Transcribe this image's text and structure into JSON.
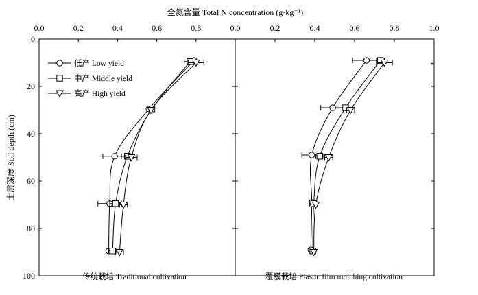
{
  "chart_data": {
    "type": "line",
    "title": "全氮含量 Total N concentration (g·kg⁻¹)",
    "ylabel": "土层深度 Soil depth (cm)",
    "xlim": [
      0,
      1.0
    ],
    "ylim": [
      0,
      100
    ],
    "y_inverted": true,
    "x_axis_position": "top",
    "grid": false,
    "legend_position": "top-left",
    "x_ticks": [
      "0.0",
      "0.2",
      "0.4",
      "0.6",
      "0.8",
      "0.0",
      "0.2",
      "0.4",
      "0.6",
      "0.8",
      "1.0"
    ],
    "y_ticks": [
      "0",
      "20",
      "40",
      "60",
      "80",
      "100"
    ],
    "legend": [
      {
        "name": "低产 Low yield",
        "marker": "circle"
      },
      {
        "name": "中产 Middle yield",
        "marker": "square"
      },
      {
        "name": "高产 High yield",
        "marker": "triangle-down"
      }
    ],
    "panels": [
      {
        "label": "传统栽培 Traditional cultivation",
        "annotation": "",
        "series": [
          {
            "name": "低产 Low yield",
            "marker": "circle",
            "points": [
              {
                "x": 0.79,
                "y": 9,
                "err": 0.0
              },
              {
                "x": 0.56,
                "y": 29.5,
                "err": 0.0
              },
              {
                "x": 0.385,
                "y": 49.5,
                "err": 0.06
              },
              {
                "x": 0.36,
                "y": 69.5,
                "err": 0.06
              },
              {
                "x": 0.355,
                "y": 89.5,
                "err": 0.0
              }
            ]
          },
          {
            "name": "中产 Middle yield",
            "marker": "square",
            "points": [
              {
                "x": 0.77,
                "y": 9.5,
                "err": 0.03
              },
              {
                "x": 0.575,
                "y": 29.5,
                "err": 0.0
              },
              {
                "x": 0.45,
                "y": 49.5,
                "err": 0.03
              },
              {
                "x": 0.39,
                "y": 69.5,
                "err": 0.03
              },
              {
                "x": 0.375,
                "y": 89.5,
                "err": 0.02
              }
            ]
          },
          {
            "name": "高产 High yield",
            "marker": "triangle-down",
            "points": [
              {
                "x": 0.8,
                "y": 10,
                "err": 0.04
              },
              {
                "x": 0.57,
                "y": 30,
                "err": 0.0
              },
              {
                "x": 0.47,
                "y": 50,
                "err": 0.03
              },
              {
                "x": 0.43,
                "y": 70,
                "err": 0.02
              },
              {
                "x": 0.41,
                "y": 90,
                "err": 0.02
              }
            ]
          }
        ]
      },
      {
        "label": "覆膜栽培 Plastic film mulching cultivation",
        "annotation": "*",
        "series": [
          {
            "name": "低产 Low yield",
            "marker": "circle",
            "points": [
              {
                "x": 0.66,
                "y": 9,
                "err": 0.07
              },
              {
                "x": 0.49,
                "y": 29,
                "err": 0.06
              },
              {
                "x": 0.385,
                "y": 49,
                "err": 0.05
              },
              {
                "x": 0.385,
                "y": 69,
                "err": 0.0
              },
              {
                "x": 0.38,
                "y": 89,
                "err": 0.0
              }
            ]
          },
          {
            "name": "中产 Middle yield",
            "marker": "square",
            "points": [
              {
                "x": 0.73,
                "y": 9,
                "err": 0.02
              },
              {
                "x": 0.555,
                "y": 29,
                "err": 0.0
              },
              {
                "x": 0.425,
                "y": 49.5,
                "err": 0.02
              },
              {
                "x": 0.395,
                "y": 69.5,
                "err": 0.02
              },
              {
                "x": 0.39,
                "y": 89.5,
                "err": 0.0
              }
            ]
          },
          {
            "name": "高产 High yield",
            "marker": "triangle-down",
            "points": [
              {
                "x": 0.75,
                "y": 10,
                "err": 0.04
              },
              {
                "x": 0.58,
                "y": 30,
                "err": 0.02
              },
              {
                "x": 0.47,
                "y": 50,
                "err": 0.02
              },
              {
                "x": 0.405,
                "y": 70,
                "err": 0.0
              },
              {
                "x": 0.395,
                "y": 90,
                "err": 0.0
              }
            ]
          }
        ]
      }
    ]
  }
}
